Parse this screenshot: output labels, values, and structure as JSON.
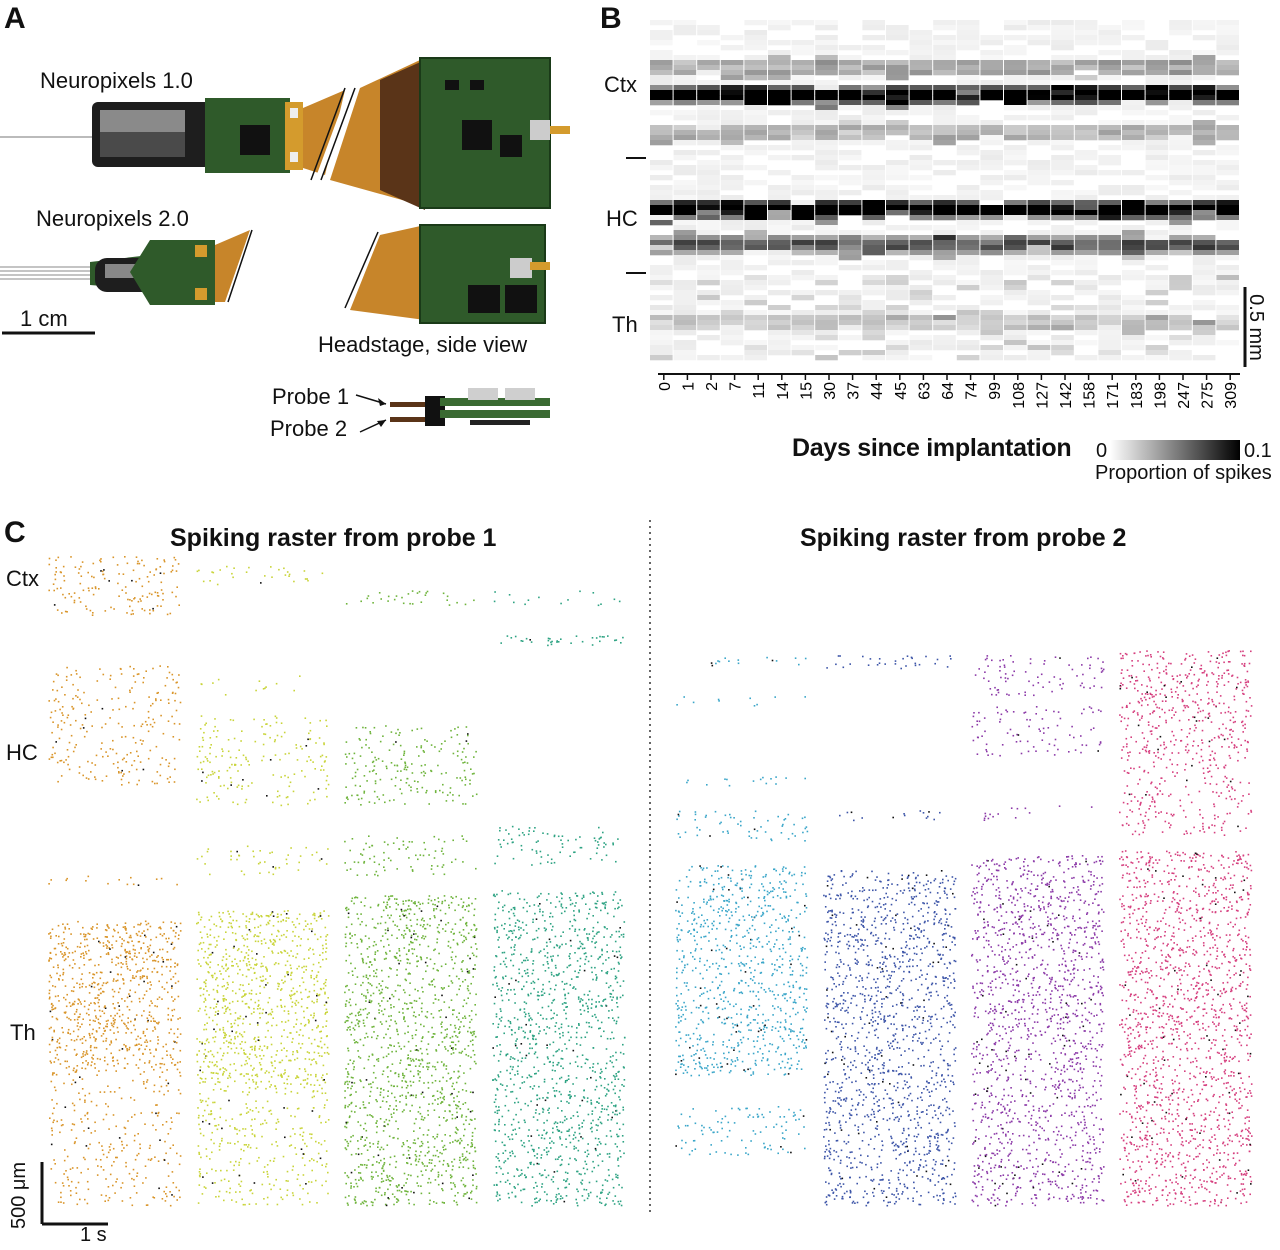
{
  "panels": {
    "a": {
      "label": "A"
    },
    "b": {
      "label": "B"
    },
    "c": {
      "label": "C"
    }
  },
  "panel_a": {
    "np1_label": "Neuropixels 1.0",
    "np2_label": "Neuropixels 2.0",
    "scale_label": "1 cm",
    "headstage_label": "Headstage, side view",
    "probe1_label": "Probe 1",
    "probe2_label": "Probe 2"
  },
  "panel_b": {
    "regions": [
      "Ctx",
      "HC",
      "Th"
    ],
    "xlabel": "Days since implantation",
    "days": [
      "0",
      "1",
      "2",
      "7",
      "11",
      "14",
      "15",
      "30",
      "37",
      "44",
      "45",
      "63",
      "64",
      "74",
      "99",
      "108",
      "127",
      "142",
      "158",
      "171",
      "183",
      "198",
      "247",
      "275",
      "309"
    ],
    "scale_label": "0.5 mm",
    "colorbar_min": "0",
    "colorbar_max": "0.1",
    "colorbar_label": "Proportion of spikes"
  },
  "panel_c": {
    "title_probe1": "Spiking raster from probe 1",
    "title_probe2": "Spiking raster from probe 2",
    "regions": [
      "Ctx",
      "HC",
      "Th"
    ],
    "scale_y": "500 μm",
    "scale_x": "1 s",
    "probe1_colors": [
      "#d9952a",
      "#c9d43a",
      "#6fb43c",
      "#2ea383"
    ],
    "probe2_colors": [
      "#3aa6c9",
      "#3d55a8",
      "#8c3aa8",
      "#d6407f"
    ]
  }
}
